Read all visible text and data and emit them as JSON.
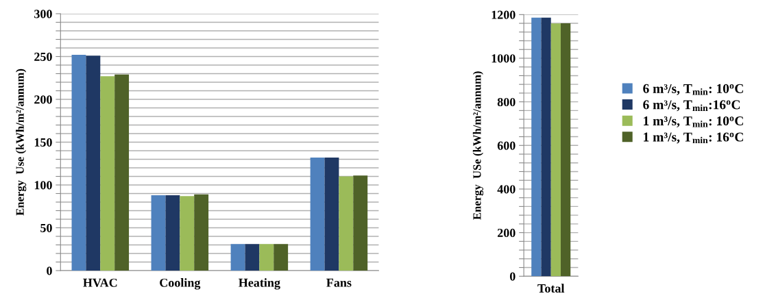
{
  "chart_data": [
    {
      "type": "bar",
      "ylabel": "Energy  Use (kWh/m²/annum)",
      "categories": [
        "HVAC",
        "Cooling",
        "Heating",
        "Fans"
      ],
      "ylim": [
        0,
        300
      ],
      "yticks": [
        0,
        {
          "value": 10,
          "label": null
        },
        {
          "value": 20,
          "label": null
        },
        {
          "value": 30,
          "label": null
        },
        {
          "value": 40,
          "label": null
        },
        50,
        {
          "value": 60,
          "label": null
        },
        {
          "value": 70,
          "label": null
        },
        {
          "value": 80,
          "label": null
        },
        {
          "value": 90,
          "label": null
        },
        100,
        {
          "value": 110,
          "label": null
        },
        {
          "value": 120,
          "label": null
        },
        {
          "value": 130,
          "label": null
        },
        {
          "value": 140,
          "label": null
        },
        150,
        {
          "value": 160,
          "label": null
        },
        {
          "value": 170,
          "label": null
        },
        {
          "value": 180,
          "label": null
        },
        {
          "value": 190,
          "label": null
        },
        200,
        {
          "value": 210,
          "label": null
        },
        {
          "value": 220,
          "label": null
        },
        {
          "value": 230,
          "label": null
        },
        {
          "value": 240,
          "label": null
        },
        250,
        {
          "value": 260,
          "label": null
        },
        {
          "value": 270,
          "label": null
        },
        {
          "value": 280,
          "label": null
        },
        {
          "value": 290,
          "label": null
        },
        300
      ],
      "grid": "y",
      "legend": false,
      "series": [
        {
          "color": "#4f81bd",
          "values": [
            252,
            88,
            31,
            132
          ]
        },
        {
          "color": "#1f3864",
          "values": [
            251,
            88,
            31,
            132
          ]
        },
        {
          "color": "#9bbb59",
          "values": [
            227,
            87,
            31,
            110
          ]
        },
        {
          "color": "#4f6228",
          "values": [
            229,
            89,
            31,
            111
          ]
        }
      ]
    },
    {
      "type": "bar",
      "ylabel": "Energy  USe (kWh/m²/annum)",
      "categories": [
        "Total"
      ],
      "ylim": [
        0,
        1200
      ],
      "yticks": [
        0,
        {
          "value": 40,
          "label": null
        },
        {
          "value": 80,
          "label": null
        },
        {
          "value": 120,
          "label": null
        },
        {
          "value": 160,
          "label": null
        },
        200,
        {
          "value": 240,
          "label": null
        },
        {
          "value": 280,
          "label": null
        },
        {
          "value": 320,
          "label": null
        },
        {
          "value": 360,
          "label": null
        },
        400,
        {
          "value": 440,
          "label": null
        },
        {
          "value": 480,
          "label": null
        },
        {
          "value": 520,
          "label": null
        },
        {
          "value": 560,
          "label": null
        },
        600,
        {
          "value": 640,
          "label": null
        },
        {
          "value": 680,
          "label": null
        },
        {
          "value": 720,
          "label": null
        },
        {
          "value": 760,
          "label": null
        },
        800,
        {
          "value": 840,
          "label": null
        },
        {
          "value": 880,
          "label": null
        },
        {
          "value": 920,
          "label": null
        },
        {
          "value": 960,
          "label": null
        },
        1000,
        {
          "value": 1040,
          "label": null
        },
        {
          "value": 1080,
          "label": null
        },
        {
          "value": 1120,
          "label": null
        },
        {
          "value": 1160,
          "label": null
        },
        1200
      ],
      "grid": "y",
      "legend": "right",
      "series": [
        {
          "name": "6 m³/s, T$_{min}$: 10$^{o}$C",
          "color": "#4f81bd",
          "values": [
            1186
          ]
        },
        {
          "name": "6 m³/s, T$_{min}$:16$^{o}$C",
          "color": "#1f3864",
          "values": [
            1186
          ]
        },
        {
          "name": "1 m³/s, T$_{min}$: 10$^{o}$C",
          "color": "#9bbb59",
          "values": [
            1159
          ]
        },
        {
          "name": "1 m³/s, T$_{min}$: 16$^{o}$C",
          "color": "#4f6228",
          "values": [
            1160
          ]
        }
      ]
    }
  ]
}
